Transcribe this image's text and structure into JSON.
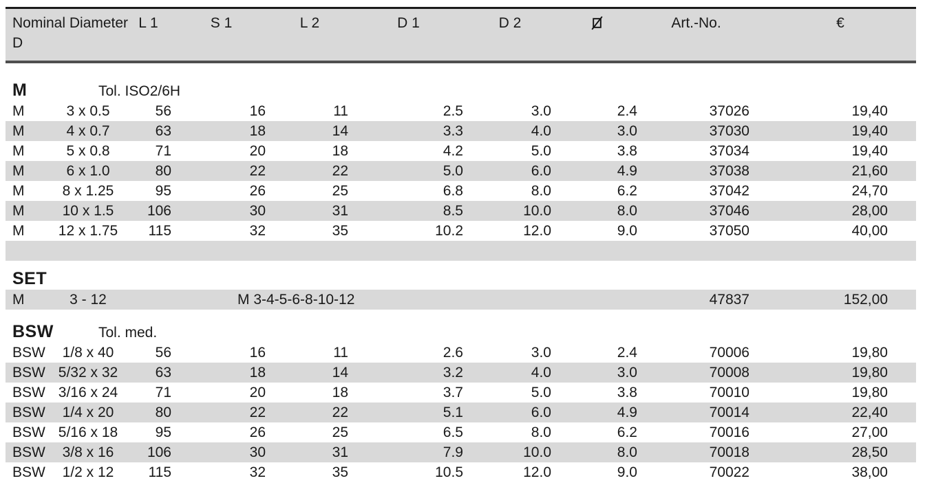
{
  "header": {
    "nominal_line1": "Nominal Diameter",
    "nominal_line2": "D",
    "l1": "L 1",
    "s1": "S 1",
    "l2": "L 2",
    "d1": "D 1",
    "d2": "D 2",
    "dia_icon": "square-diagonal-slash",
    "art_no": "Art.-No.",
    "currency": "€"
  },
  "colors": {
    "row_shade": "#d9d9d9",
    "top_rule": "#1b1b1b",
    "header_rule": "#4f4f4f",
    "text": "#1a1a1a"
  },
  "sections": [
    {
      "name": "M",
      "tolerance": "Tol. ISO2/6H",
      "rows": [
        {
          "prefix": "M",
          "size": "3 x 0.5",
          "l1": "56",
          "s1": "16",
          "l2": "11",
          "d1": "2.5",
          "d2": "3.0",
          "dia": "2.4",
          "art_no": "37026",
          "price": "19,40",
          "shaded": false
        },
        {
          "prefix": "M",
          "size": "4 x 0.7",
          "l1": "63",
          "s1": "18",
          "l2": "14",
          "d1": "3.3",
          "d2": "4.0",
          "dia": "3.0",
          "art_no": "37030",
          "price": "19,40",
          "shaded": true
        },
        {
          "prefix": "M",
          "size": "5 x 0.8",
          "l1": "71",
          "s1": "20",
          "l2": "18",
          "d1": "4.2",
          "d2": "5.0",
          "dia": "3.8",
          "art_no": "37034",
          "price": "19,40",
          "shaded": false
        },
        {
          "prefix": "M",
          "size": "6 x 1.0",
          "l1": "80",
          "s1": "22",
          "l2": "22",
          "d1": "5.0",
          "d2": "6.0",
          "dia": "4.9",
          "art_no": "37038",
          "price": "21,60",
          "shaded": true
        },
        {
          "prefix": "M",
          "size": "8 x 1.25",
          "l1": "95",
          "s1": "26",
          "l2": "25",
          "d1": "6.8",
          "d2": "8.0",
          "dia": "6.2",
          "art_no": "37042",
          "price": "24,70",
          "shaded": false
        },
        {
          "prefix": "M",
          "size": "10 x 1.5",
          "l1": "106",
          "s1": "30",
          "l2": "31",
          "d1": "8.5",
          "d2": "10.0",
          "dia": "8.0",
          "art_no": "37046",
          "price": "28,00",
          "shaded": true
        },
        {
          "prefix": "M",
          "size": "12 x 1.75",
          "l1": "115",
          "s1": "32",
          "l2": "35",
          "d1": "10.2",
          "d2": "12.0",
          "dia": "9.0",
          "art_no": "37050",
          "price": "40,00",
          "shaded": false
        },
        {
          "prefix": "",
          "size": "",
          "l1": "",
          "s1": "",
          "l2": "",
          "d1": "",
          "d2": "",
          "dia": "",
          "art_no": "",
          "price": "",
          "shaded": true
        }
      ]
    },
    {
      "name": "SET",
      "tolerance": "",
      "rows": [
        {
          "prefix": "M",
          "size": "3 - 12",
          "contents": "M 3-4-5-6-8-10-12",
          "art_no": "47837",
          "price": "152,00",
          "shaded": true
        }
      ]
    },
    {
      "name": "BSW",
      "tolerance": "Tol. med.",
      "rows": [
        {
          "prefix": "BSW",
          "size": "1/8 x 40",
          "l1": "56",
          "s1": "16",
          "l2": "11",
          "d1": "2.6",
          "d2": "3.0",
          "dia": "2.4",
          "art_no": "70006",
          "price": "19,80",
          "shaded": false
        },
        {
          "prefix": "BSW",
          "size": "5/32 x 32",
          "l1": "63",
          "s1": "18",
          "l2": "14",
          "d1": "3.2",
          "d2": "4.0",
          "dia": "3.0",
          "art_no": "70008",
          "price": "19,80",
          "shaded": true
        },
        {
          "prefix": "BSW",
          "size": "3/16 x 24",
          "l1": "71",
          "s1": "20",
          "l2": "18",
          "d1": "3.7",
          "d2": "5.0",
          "dia": "3.8",
          "art_no": "70010",
          "price": "19,80",
          "shaded": false
        },
        {
          "prefix": "BSW",
          "size": "1/4 x 20",
          "l1": "80",
          "s1": "22",
          "l2": "22",
          "d1": "5.1",
          "d2": "6.0",
          "dia": "4.9",
          "art_no": "70014",
          "price": "22,40",
          "shaded": true
        },
        {
          "prefix": "BSW",
          "size": "5/16 x 18",
          "l1": "95",
          "s1": "26",
          "l2": "25",
          "d1": "6.5",
          "d2": "8.0",
          "dia": "6.2",
          "art_no": "70016",
          "price": "27,00",
          "shaded": false
        },
        {
          "prefix": "BSW",
          "size": "3/8 x 16",
          "l1": "106",
          "s1": "30",
          "l2": "31",
          "d1": "7.9",
          "d2": "10.0",
          "dia": "8.0",
          "art_no": "70018",
          "price": "28,50",
          "shaded": true
        },
        {
          "prefix": "BSW",
          "size": "1/2 x 12",
          "l1": "115",
          "s1": "32",
          "l2": "35",
          "d1": "10.5",
          "d2": "12.0",
          "dia": "9.0",
          "art_no": "70022",
          "price": "38,00",
          "shaded": false
        }
      ]
    }
  ]
}
